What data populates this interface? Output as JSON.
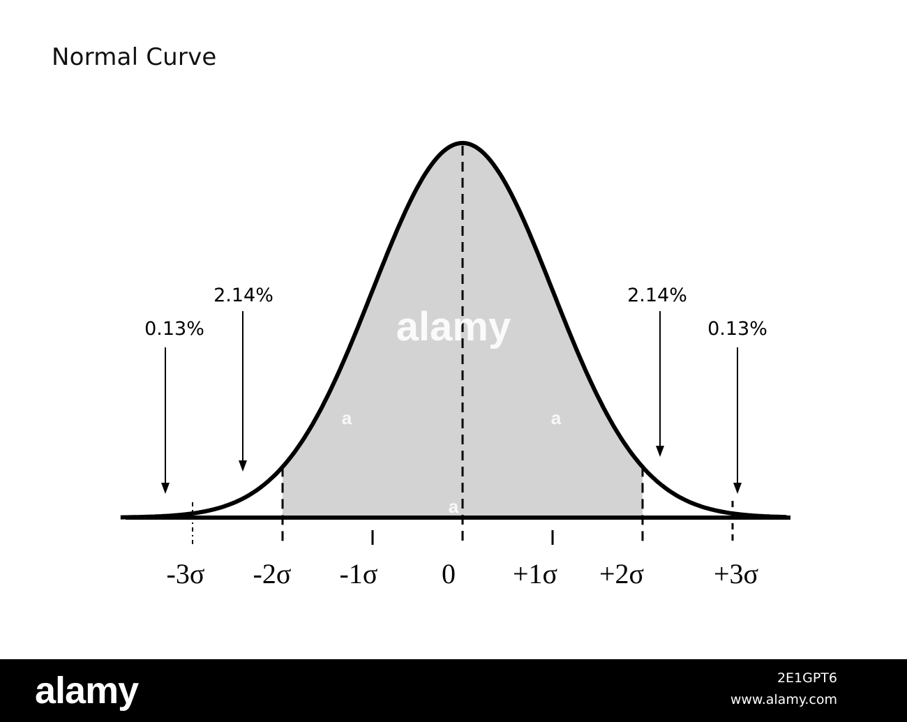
{
  "chart_data": {
    "type": "area",
    "title": "Normal Curve",
    "xlabel": "",
    "ylabel": "",
    "xlim": [
      -3.6,
      3.6
    ],
    "curve": "standard normal density",
    "shaded_range": [
      -2,
      2
    ],
    "colors": {
      "shade": "#d3d3d3",
      "line": "#000000",
      "background": "#ffffff"
    },
    "ticks": [
      {
        "x": -3,
        "label": "-3σ",
        "style": "dashdot"
      },
      {
        "x": -2,
        "label": "-2σ",
        "style": "dashed"
      },
      {
        "x": -1,
        "label": "-1σ",
        "style": "solid"
      },
      {
        "x": 0,
        "label": "0",
        "style": "dashed"
      },
      {
        "x": 1,
        "label": "+1σ",
        "style": "solid"
      },
      {
        "x": 2,
        "label": "+2σ",
        "style": "dashed"
      },
      {
        "x": 3,
        "label": "+3σ",
        "style": "dashed"
      }
    ],
    "annotations": [
      {
        "label": "0.13%",
        "x": -3.3
      },
      {
        "label": "2.14%",
        "x": -2.4
      },
      {
        "label": "2.14%",
        "x": 2.2
      },
      {
        "label": "0.13%",
        "x": 3.0
      }
    ]
  },
  "watermark": {
    "text": "alamy",
    "small": "a"
  },
  "footer": {
    "logo": "alamy",
    "image_id": "2E1GPT6",
    "url": "www.alamy.com"
  }
}
